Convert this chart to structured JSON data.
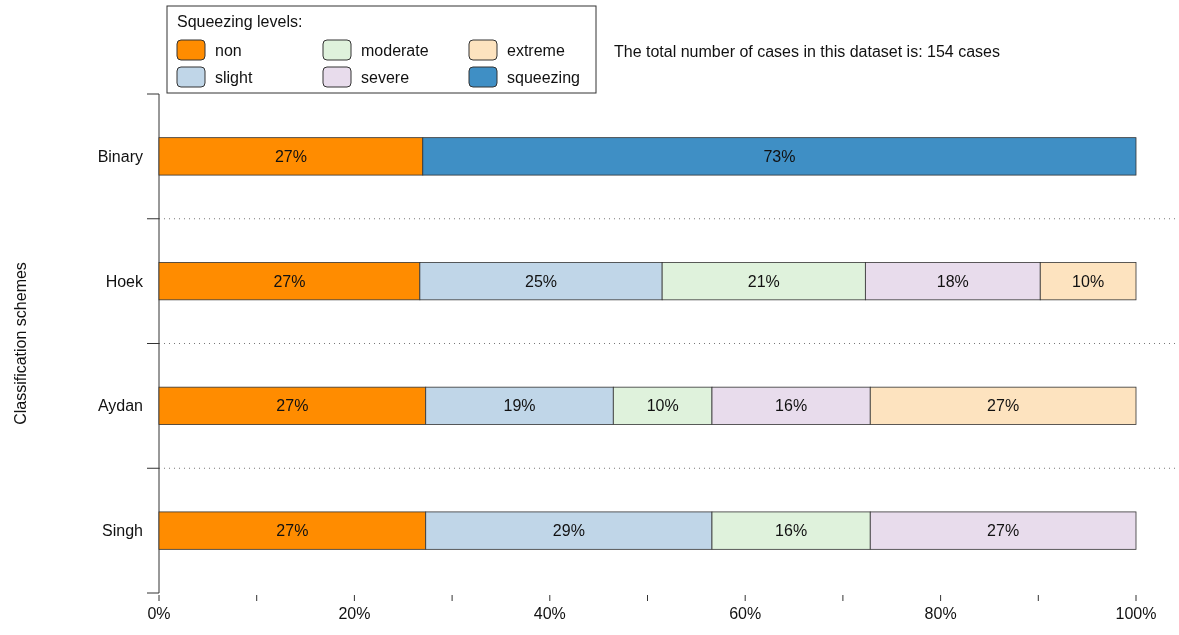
{
  "chart_data": {
    "type": "bar",
    "orientation": "horizontal",
    "stacked": true,
    "ylabel": "Classification schemes",
    "legend_title": "Squeezing levels:",
    "legend": "top left",
    "grid": "y",
    "annotations": [
      "The total number of cases in this dataset is: 154 cases"
    ],
    "categories": [
      "Binary",
      "Hoek",
      "Aydan",
      "Singh"
    ],
    "xlim": [
      0,
      100
    ],
    "xticks": [
      {
        "value": 0,
        "label": "0%"
      },
      {
        "value": 10,
        "label": null
      },
      {
        "value": 20,
        "label": "20%"
      },
      {
        "value": 30,
        "label": null
      },
      {
        "value": 40,
        "label": "40%"
      },
      {
        "value": 50,
        "label": null
      },
      {
        "value": 60,
        "label": "60%"
      },
      {
        "value": 70,
        "label": null
      },
      {
        "value": 80,
        "label": "80%"
      },
      {
        "value": 90,
        "label": null
      },
      {
        "value": 100,
        "label": "100%"
      }
    ],
    "series": [
      {
        "name": "non",
        "color": "#ff8c00",
        "values": [
          27.0,
          26.7,
          27.3,
          27.3
        ],
        "value_labels": [
          "27%",
          "27%",
          "27%",
          "27%"
        ]
      },
      {
        "name": "slight",
        "color": "#c0d6e8",
        "values": [
          null,
          24.8,
          19.2,
          29.3
        ],
        "value_labels": [
          null,
          "25%",
          "19%",
          "29%"
        ]
      },
      {
        "name": "moderate",
        "color": "#dff2dc",
        "values": [
          null,
          20.8,
          10.1,
          16.2
        ],
        "value_labels": [
          null,
          "21%",
          "10%",
          "16%"
        ]
      },
      {
        "name": "severe",
        "color": "#e8dcec",
        "values": [
          null,
          17.9,
          16.2,
          27.2
        ],
        "value_labels": [
          null,
          "18%",
          "16%",
          "27%"
        ]
      },
      {
        "name": "extreme",
        "color": "#fde3bf",
        "values": [
          null,
          9.8,
          27.2,
          null
        ],
        "value_labels": [
          null,
          "10%",
          "27%",
          null
        ]
      },
      {
        "name": "squeezing",
        "color": "#3f8fc5",
        "values": [
          73.0,
          null,
          null,
          null
        ],
        "value_labels": [
          "73%",
          null,
          null,
          null
        ]
      }
    ]
  }
}
